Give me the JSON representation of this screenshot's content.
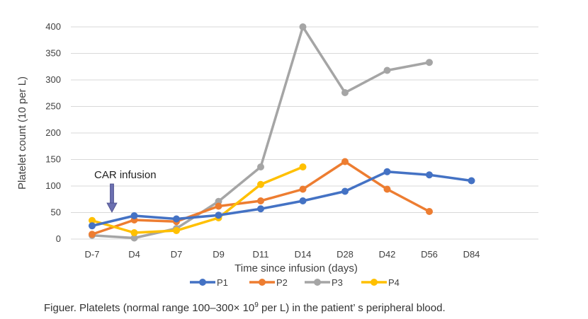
{
  "chart_data": {
    "type": "line",
    "categories": [
      "D-7",
      "D4",
      "D7",
      "D9",
      "D11",
      "D14",
      "D28",
      "D42",
      "D56",
      "D84"
    ],
    "series": [
      {
        "name": "P1",
        "color": "#4472C4",
        "values": [
          25,
          44,
          38,
          45,
          57,
          72,
          90,
          127,
          121,
          110
        ]
      },
      {
        "name": "P2",
        "color": "#ED7D31",
        "values": [
          9,
          36,
          33,
          62,
          72,
          94,
          146,
          94,
          52,
          null
        ]
      },
      {
        "name": "P3",
        "color": "#A5A5A5",
        "values": [
          7,
          2,
          20,
          71,
          136,
          400,
          276,
          318,
          333,
          null
        ]
      },
      {
        "name": "P4",
        "color": "#FFC000",
        "values": [
          35,
          12,
          16,
          40,
          103,
          136,
          null,
          null,
          null,
          null
        ]
      }
    ],
    "ylim": [
      0,
      400
    ],
    "yticks": [
      0,
      50,
      100,
      150,
      200,
      250,
      300,
      350,
      400
    ],
    "ytick_labels": [
      "0",
      "50",
      "100",
      "150",
      "200",
      "250",
      "300",
      "350",
      "400"
    ],
    "xlabel": "Time since infusion (days)",
    "ylabel": "Platelet count (10 per L)",
    "annotation": {
      "text": "CAR infusion",
      "arrow_color": "#6B6FB0"
    },
    "grid": true,
    "legend_position": "bottom"
  },
  "caption": {
    "prefix": "Figuer.  Platelets (normal range 100–300× 10",
    "superscript": "9",
    "suffix": " per L)  in the patient’  s peripheral blood."
  }
}
